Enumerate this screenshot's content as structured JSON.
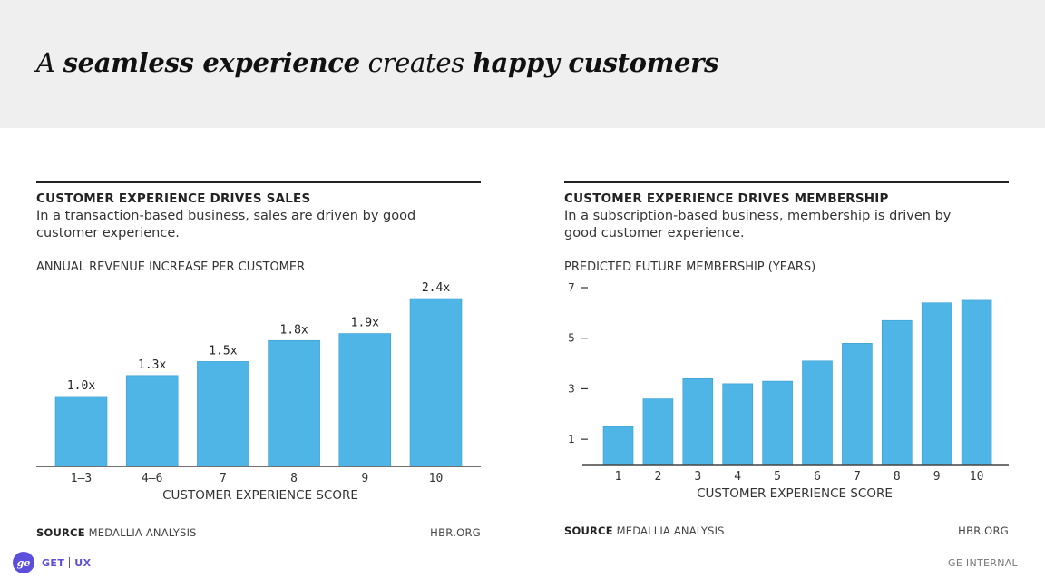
{
  "slide": {
    "title_parts": [
      {
        "text": "A ",
        "style": "it"
      },
      {
        "text": "seamless experience",
        "style": "bi"
      },
      {
        "text": " creates ",
        "style": "it"
      },
      {
        "text": "happy customers",
        "style": "bi"
      }
    ]
  },
  "colors": {
    "bar": "#4fb4e6",
    "axis": "#444444",
    "brand": "#5b4fdb",
    "header_band": "#efefef"
  },
  "footer": {
    "logo_icon": "ge-monogram-icon",
    "logo_text": "ge",
    "brand_left": "GET",
    "brand_right": "UX",
    "right_text": "GE INTERNAL"
  },
  "chart_data": [
    {
      "type": "bar",
      "title": "CUSTOMER EXPERIENCE DRIVES SALES",
      "subtitle": "In a transaction-based business, sales are driven by good customer experience.",
      "ylabel": "ANNUAL REVENUE INCREASE PER CUSTOMER",
      "xlabel": "CUSTOMER EXPERIENCE SCORE",
      "categories": [
        "1–3",
        "4–6",
        "7",
        "8",
        "9",
        "10"
      ],
      "values": [
        1.0,
        1.3,
        1.5,
        1.8,
        1.9,
        2.4
      ],
      "value_labels": [
        "1.0x",
        "1.3x",
        "1.5x",
        "1.8x",
        "1.9x",
        "2.4x"
      ],
      "ylim": [
        0,
        2.4
      ],
      "y_ticks": [],
      "source_label": "SOURCE",
      "source_text": "MEDALLIA ANALYSIS",
      "credit": "HBR.ORG"
    },
    {
      "type": "bar",
      "title": "CUSTOMER EXPERIENCE DRIVES MEMBERSHIP",
      "subtitle": "In a subscription-based business, membership is driven by good customer experience.",
      "ylabel": "PREDICTED FUTURE MEMBERSHIP (YEARS)",
      "xlabel": "CUSTOMER EXPERIENCE SCORE",
      "categories": [
        "1",
        "2",
        "3",
        "4",
        "5",
        "6",
        "7",
        "8",
        "9",
        "10"
      ],
      "values": [
        1.5,
        2.6,
        3.4,
        3.2,
        3.3,
        4.1,
        4.8,
        5.7,
        6.4,
        6.5
      ],
      "value_labels": [],
      "ylim": [
        0,
        7
      ],
      "y_ticks": [
        1,
        3,
        5,
        7
      ],
      "source_label": "SOURCE",
      "source_text": "MEDALLIA ANALYSIS",
      "credit": "HBR.ORG"
    }
  ]
}
